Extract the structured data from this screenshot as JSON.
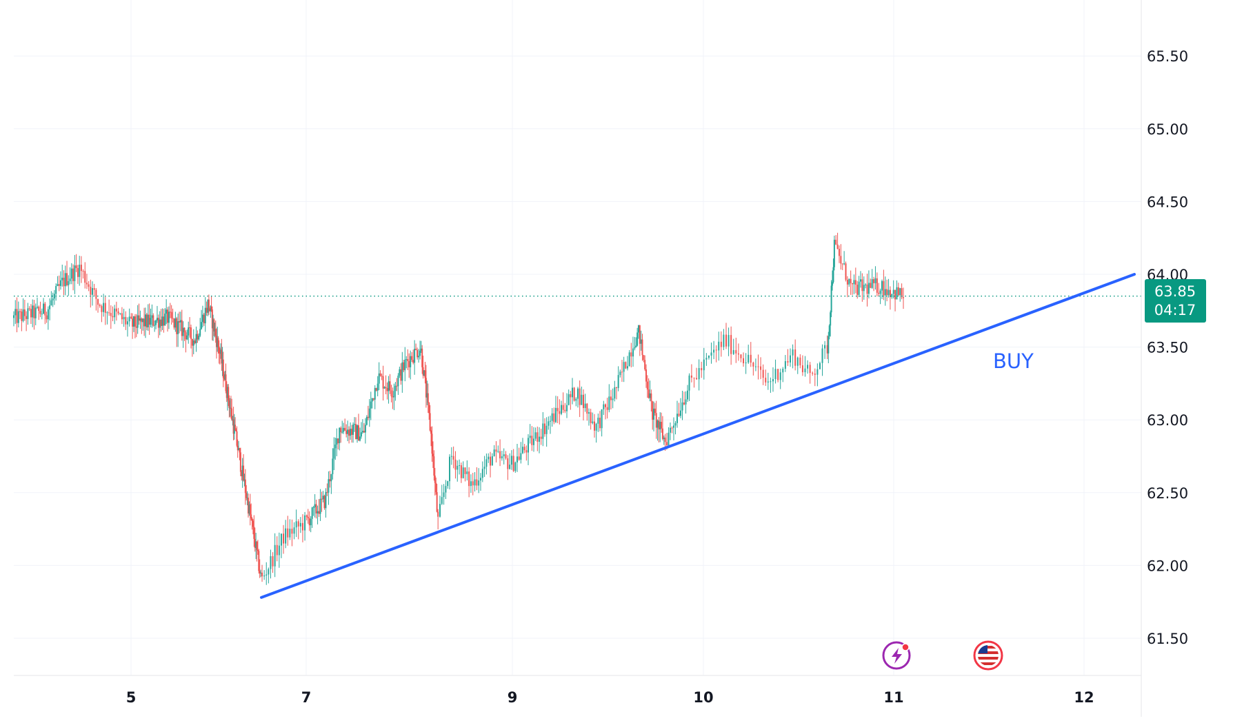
{
  "chart_data": {
    "type": "candlestick",
    "x_axis": {
      "tick_labels": [
        "5",
        "7",
        "9",
        "10",
        "11",
        "12"
      ]
    },
    "y_axis": {
      "tick_labels": [
        "65.50",
        "65.00",
        "64.50",
        "64.00",
        "63.50",
        "63.00",
        "62.50",
        "62.00",
        "61.50"
      ],
      "range": [
        61.25,
        65.9
      ],
      "position": "right"
    },
    "grid": true,
    "price_line": {
      "value": 63.85,
      "style": "dotted"
    },
    "price_label": {
      "price": "63.85",
      "countdown": "04:17"
    },
    "series": [
      {
        "anchors": [
          [
            "4",
            63.7
          ],
          [
            "4.3",
            63.75
          ],
          [
            "4.45",
            63.95
          ],
          [
            "4.6",
            64.05
          ],
          [
            "4.75",
            63.8
          ],
          [
            "5",
            63.65
          ],
          [
            "5.4",
            63.7
          ],
          [
            "5.7",
            63.55
          ],
          [
            "5.85",
            63.8
          ],
          [
            "6.05",
            63.45
          ],
          [
            "6.35",
            62.8
          ],
          [
            "6.55",
            62.3
          ],
          [
            "6.7",
            61.9
          ],
          [
            "6.85",
            62.2
          ],
          [
            "7",
            62.3
          ],
          [
            "7.2",
            62.45
          ],
          [
            "7.35",
            62.95
          ],
          [
            "7.6",
            62.9
          ],
          [
            "7.75",
            63.3
          ],
          [
            "7.9",
            63.2
          ],
          [
            "8.05",
            63.4
          ],
          [
            "8.2",
            63.5
          ],
          [
            "8.35",
            62.9
          ],
          [
            "8.45",
            62.3
          ],
          [
            "8.55",
            62.75
          ],
          [
            "8.7",
            62.55
          ],
          [
            "8.85",
            62.75
          ],
          [
            "9",
            62.7
          ],
          [
            "9.15",
            62.85
          ],
          [
            "9.35",
            63.05
          ],
          [
            "9.5",
            63.2
          ],
          [
            "9.65",
            62.95
          ],
          [
            "9.8",
            63.2
          ],
          [
            "9.95",
            63.55
          ],
          [
            "10",
            63.6
          ],
          [
            "10.15",
            63.05
          ],
          [
            "10.3",
            62.85
          ],
          [
            "10.4",
            63.05
          ],
          [
            "10.5",
            63.25
          ],
          [
            "10.7",
            63.55
          ],
          [
            "10.85",
            63.4
          ],
          [
            "10.95",
            63.25
          ],
          [
            "11.1",
            63.45
          ],
          [
            "11.2",
            63.3
          ],
          [
            "11.3",
            63.5
          ],
          [
            "11.4",
            64.2
          ],
          [
            "11.55",
            63.9
          ],
          [
            "11.8",
            63.92
          ],
          [
            "12",
            63.85
          ]
        ]
      }
    ],
    "trendline": {
      "from": [
        "6.7",
        61.78
      ],
      "to": [
        "12.5",
        64.0
      ],
      "color": "#2962FF"
    },
    "annotations": [
      {
        "text": "BUY",
        "color": "#2962FF"
      }
    ],
    "colors": {
      "up": "#26a69a",
      "down": "#ef5350",
      "price_badge": "#089981"
    },
    "icons": [
      "lightning-event-icon",
      "us-flag-event-icon"
    ]
  }
}
